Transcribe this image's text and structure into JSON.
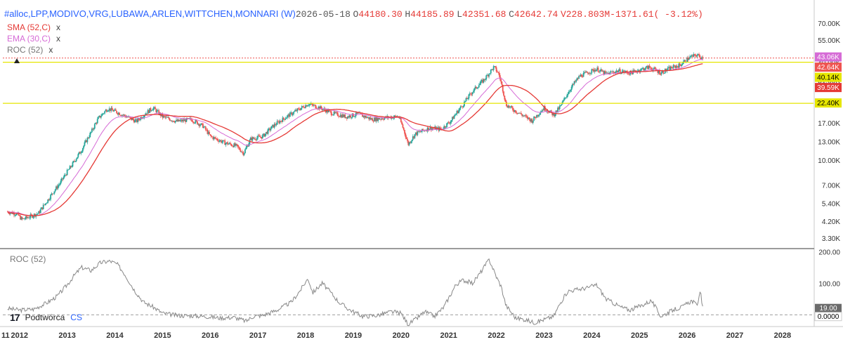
{
  "header": {
    "symbol": "#alloc,LPP,MODIVO,VRG,LUBAWA,ARLEN,WITTCHEN,MONNARI (W)",
    "date": "2026-05-18",
    "o_label": "O",
    "o": "44180.30",
    "h_label": "H",
    "h": "44185.89",
    "l_label": "L",
    "l": "42351.68",
    "c_label": "C",
    "c": "42642.74",
    "v": "V228.803M",
    "change": "-1371.61",
    "change_pct": "(  -3.12%)"
  },
  "indicators": [
    {
      "label": "SMA (52,C)",
      "color": "#e53935",
      "close": "x"
    },
    {
      "label": "EMA (30,C)",
      "color": "#d66bd6",
      "close": "x"
    },
    {
      "label": "ROC (52)",
      "color": "#777777",
      "close": "x"
    }
  ],
  "roc_pane_label": "ROC (52)",
  "brand": {
    "name": "Podtwórca",
    "suffix": "CS"
  },
  "colors": {
    "up": "#26a69a",
    "down": "#ef5350",
    "sma": "#e53935",
    "ema": "#d66bd6",
    "hline": "#e6e600",
    "roc": "#888888"
  },
  "chart_data": [
    {
      "type": "candlestick",
      "scale": "log",
      "x_ticks": [
        "2012",
        "2013",
        "2014",
        "2015",
        "2016",
        "2017",
        "2018",
        "2019",
        "2020",
        "2021",
        "2022",
        "2023",
        "2024",
        "2025",
        "2026",
        "2027",
        "2028"
      ],
      "x_left_partial": "11",
      "y_ticks": [
        "70.00K",
        "55.00K",
        "40.00K",
        "31.00K",
        "22.40K",
        "17.00K",
        "13.00K",
        "10.00K",
        "7.00K",
        "5.40K",
        "4.20K",
        "3.30K"
      ],
      "y_tick_values": [
        70000,
        55000,
        40000,
        31000,
        22400,
        17000,
        13000,
        10000,
        7000,
        5400,
        4200,
        3300
      ],
      "ylim": [
        2900,
        75000
      ],
      "price_badges": [
        {
          "text": "43.06K",
          "value": 43060,
          "color": "#d66bd6"
        },
        {
          "text": "42.64K",
          "value": 42640,
          "color": "#ef5350"
        },
        {
          "text": "40.14K",
          "value": 40140,
          "color": "#e6e600",
          "textColor": "#000000"
        },
        {
          "text": "39.59K",
          "value": 39590,
          "color": "#e53935"
        },
        {
          "text": "22.40K",
          "value": 22400,
          "color": "#e6e600",
          "textColor": "#000000"
        }
      ],
      "horizontal_lines": [
        {
          "value": 40140,
          "color": "#e6e600"
        },
        {
          "value": 22400,
          "color": "#e6e600"
        }
      ],
      "price_line": {
        "value": 42642.74,
        "color": "#ef5350"
      },
      "anchors": [
        [
          2011.75,
          4800
        ],
        [
          2011.95,
          4650
        ],
        [
          2012.05,
          4300
        ],
        [
          2012.15,
          4400
        ],
        [
          2012.4,
          4700
        ],
        [
          2012.6,
          5700
        ],
        [
          2012.85,
          7200
        ],
        [
          2013.1,
          9300
        ],
        [
          2013.3,
          11500
        ],
        [
          2013.5,
          14800
        ],
        [
          2013.65,
          18000
        ],
        [
          2013.85,
          20800
        ],
        [
          2014.0,
          20000
        ],
        [
          2014.25,
          18500
        ],
        [
          2014.45,
          17300
        ],
        [
          2014.65,
          19500
        ],
        [
          2014.8,
          21000
        ],
        [
          2015.0,
          18500
        ],
        [
          2015.3,
          17300
        ],
        [
          2015.6,
          17800
        ],
        [
          2015.85,
          16200
        ],
        [
          2016.0,
          14000
        ],
        [
          2016.3,
          12800
        ],
        [
          2016.55,
          12200
        ],
        [
          2016.7,
          11000
        ],
        [
          2016.85,
          13500
        ],
        [
          2017.1,
          14000
        ],
        [
          2017.35,
          16500
        ],
        [
          2017.6,
          18500
        ],
        [
          2017.85,
          20500
        ],
        [
          2018.05,
          22200
        ],
        [
          2018.3,
          21000
        ],
        [
          2018.55,
          19500
        ],
        [
          2018.85,
          18500
        ],
        [
          2019.1,
          19200
        ],
        [
          2019.4,
          17800
        ],
        [
          2019.7,
          18300
        ],
        [
          2019.95,
          18600
        ],
        [
          2020.15,
          12500
        ],
        [
          2020.3,
          14500
        ],
        [
          2020.6,
          15800
        ],
        [
          2020.85,
          15500
        ],
        [
          2021.05,
          17500
        ],
        [
          2021.3,
          22000
        ],
        [
          2021.5,
          26500
        ],
        [
          2021.75,
          31500
        ],
        [
          2021.95,
          37500
        ],
        [
          2022.05,
          34000
        ],
        [
          2022.2,
          22000
        ],
        [
          2022.35,
          20500
        ],
        [
          2022.6,
          18500
        ],
        [
          2022.75,
          17500
        ],
        [
          2023.0,
          21000
        ],
        [
          2023.2,
          19000
        ],
        [
          2023.35,
          21500
        ],
        [
          2023.55,
          27500
        ],
        [
          2023.75,
          33000
        ],
        [
          2023.95,
          35000
        ],
        [
          2024.1,
          36500
        ],
        [
          2024.3,
          34000
        ],
        [
          2024.55,
          35500
        ],
        [
          2024.8,
          34500
        ],
        [
          2025.0,
          36000
        ],
        [
          2025.2,
          37500
        ],
        [
          2025.45,
          34500
        ],
        [
          2025.65,
          37000
        ],
        [
          2025.85,
          38500
        ],
        [
          2026.05,
          43000
        ],
        [
          2026.2,
          44500
        ],
        [
          2026.33,
          42640
        ]
      ],
      "x_range": [
        2011.65,
        2028.65
      ]
    },
    {
      "type": "line",
      "name": "ROC (52)",
      "y_ticks": [
        "200.00",
        "100.00"
      ],
      "y_tick_values": [
        200,
        100
      ],
      "ylim": [
        -35,
        205
      ],
      "badges": [
        {
          "text": "19.00",
          "value": 19,
          "color": "#6b6b6b",
          "textColor": "#ffffff"
        },
        {
          "text": "0.0000",
          "value": 0,
          "color": "#ffffff",
          "textColor": "#000000"
        }
      ],
      "zero_line": 0,
      "anchors": [
        [
          2011.75,
          20
        ],
        [
          2012.0,
          15
        ],
        [
          2012.3,
          18
        ],
        [
          2012.6,
          40
        ],
        [
          2012.8,
          60
        ],
        [
          2013.0,
          95
        ],
        [
          2013.15,
          125
        ],
        [
          2013.3,
          150
        ],
        [
          2013.5,
          140
        ],
        [
          2013.7,
          165
        ],
        [
          2013.9,
          170
        ],
        [
          2014.05,
          160
        ],
        [
          2014.2,
          130
        ],
        [
          2014.4,
          80
        ],
        [
          2014.6,
          40
        ],
        [
          2014.8,
          25
        ],
        [
          2015.0,
          5
        ],
        [
          2015.3,
          -2
        ],
        [
          2015.6,
          -3
        ],
        [
          2015.9,
          -5
        ],
        [
          2016.2,
          -10
        ],
        [
          2016.5,
          -8
        ],
        [
          2016.75,
          -20
        ],
        [
          2016.9,
          -5
        ],
        [
          2017.1,
          -2
        ],
        [
          2017.4,
          15
        ],
        [
          2017.7,
          40
        ],
        [
          2017.9,
          80
        ],
        [
          2018.05,
          115
        ],
        [
          2018.15,
          70
        ],
        [
          2018.35,
          100
        ],
        [
          2018.5,
          75
        ],
        [
          2018.7,
          40
        ],
        [
          2018.9,
          18
        ],
        [
          2019.2,
          -5
        ],
        [
          2019.5,
          -2
        ],
        [
          2019.8,
          10
        ],
        [
          2020.0,
          5
        ],
        [
          2020.15,
          -30
        ],
        [
          2020.3,
          -15
        ],
        [
          2020.5,
          10
        ],
        [
          2020.7,
          -5
        ],
        [
          2020.9,
          25
        ],
        [
          2021.15,
          95
        ],
        [
          2021.3,
          110
        ],
        [
          2021.5,
          100
        ],
        [
          2021.65,
          130
        ],
        [
          2021.85,
          175
        ],
        [
          2022.0,
          120
        ],
        [
          2022.1,
          90
        ],
        [
          2022.2,
          30
        ],
        [
          2022.4,
          -10
        ],
        [
          2022.6,
          -15
        ],
        [
          2022.8,
          -25
        ],
        [
          2023.0,
          -15
        ],
        [
          2023.2,
          -5
        ],
        [
          2023.35,
          40
        ],
        [
          2023.5,
          75
        ],
        [
          2023.7,
          80
        ],
        [
          2023.9,
          85
        ],
        [
          2024.1,
          95
        ],
        [
          2024.3,
          50
        ],
        [
          2024.6,
          25
        ],
        [
          2024.8,
          15
        ],
        [
          2025.05,
          30
        ],
        [
          2025.25,
          45
        ],
        [
          2025.45,
          -5
        ],
        [
          2025.7,
          15
        ],
        [
          2025.9,
          25
        ],
        [
          2026.1,
          45
        ],
        [
          2026.2,
          30
        ],
        [
          2026.28,
          70
        ],
        [
          2026.33,
          19
        ]
      ]
    }
  ]
}
